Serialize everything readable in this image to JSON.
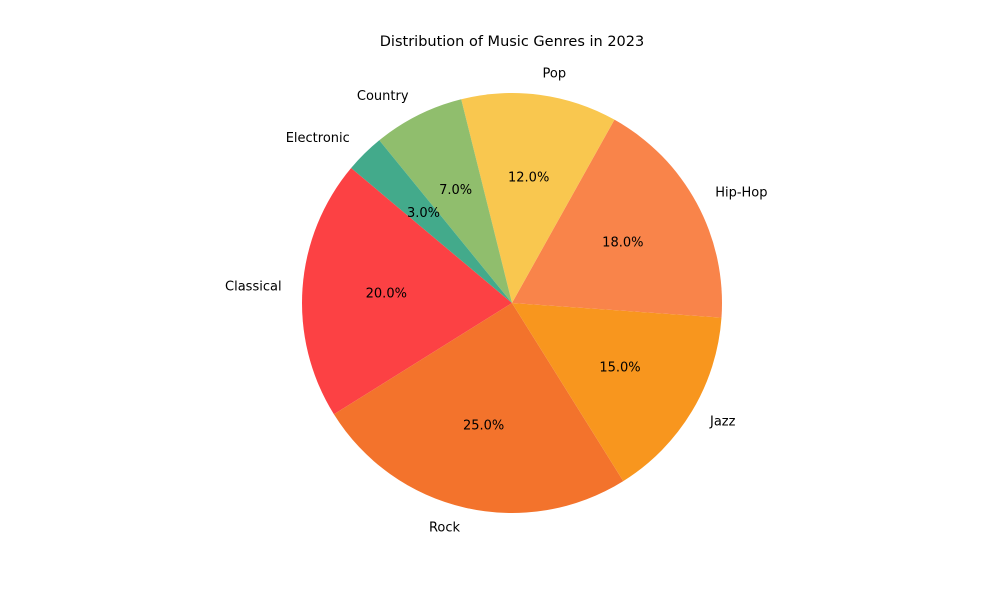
{
  "chart_data": {
    "type": "pie",
    "title": "Distribution of Music Genres in 2023",
    "categories": [
      "Classical",
      "Rock",
      "Jazz",
      "Hip-Hop",
      "Pop",
      "Country",
      "Electronic"
    ],
    "values": [
      20.0,
      25.0,
      15.0,
      18.0,
      12.0,
      7.0,
      3.0
    ],
    "value_labels": [
      "20.0%",
      "25.0%",
      "15.0%",
      "18.0%",
      "12.0%",
      "7.0%",
      "3.0%"
    ],
    "colors": [
      "#fc4144",
      "#f3732c",
      "#f8961e",
      "#f9844a",
      "#f9c74f",
      "#90be6d",
      "#43aa8b"
    ],
    "start_angle_deg": 140,
    "direction": "counterclockwise",
    "legend": "none"
  }
}
